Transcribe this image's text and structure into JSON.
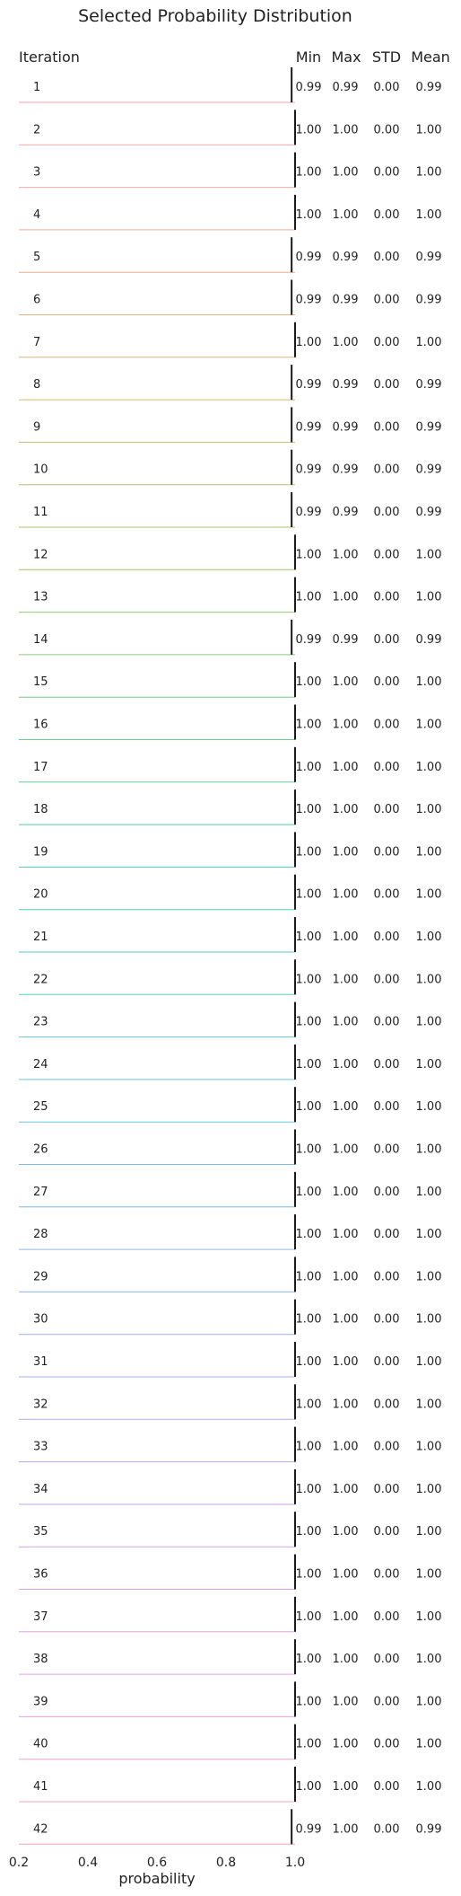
{
  "chart_data": {
    "type": "ridgeline",
    "title": "Selected Probability Distribution",
    "xlabel": "probability",
    "row_header": "Iteration",
    "stat_headers": [
      "Min",
      "Max",
      "STD",
      "Mean"
    ],
    "xlim": [
      0.2,
      1.0
    ],
    "xticks": [
      "0.2",
      "0.4",
      "0.6",
      "0.8",
      "1.0"
    ],
    "grid": false,
    "rows": [
      {
        "iteration": "1",
        "min": "0.99",
        "max": "0.99",
        "std": "0.00",
        "mean": "0.99",
        "color": "#f4a3b4"
      },
      {
        "iteration": "2",
        "min": "1.00",
        "max": "1.00",
        "std": "0.00",
        "mean": "1.00",
        "color": "#f4a6ae"
      },
      {
        "iteration": "3",
        "min": "1.00",
        "max": "1.00",
        "std": "0.00",
        "mean": "1.00",
        "color": "#f3a8a4"
      },
      {
        "iteration": "4",
        "min": "1.00",
        "max": "1.00",
        "std": "0.00",
        "mean": "1.00",
        "color": "#f2aa98"
      },
      {
        "iteration": "5",
        "min": "0.99",
        "max": "0.99",
        "std": "0.00",
        "mean": "0.99",
        "color": "#eead8a"
      },
      {
        "iteration": "6",
        "min": "0.99",
        "max": "0.99",
        "std": "0.00",
        "mean": "0.99",
        "color": "#e6b17f"
      },
      {
        "iteration": "7",
        "min": "1.00",
        "max": "1.00",
        "std": "0.00",
        "mean": "1.00",
        "color": "#ddb577"
      },
      {
        "iteration": "8",
        "min": "0.99",
        "max": "0.99",
        "std": "0.00",
        "mean": "0.99",
        "color": "#d2b971"
      },
      {
        "iteration": "9",
        "min": "0.99",
        "max": "0.99",
        "std": "0.00",
        "mean": "0.99",
        "color": "#c7bd6d"
      },
      {
        "iteration": "10",
        "min": "0.99",
        "max": "0.99",
        "std": "0.00",
        "mean": "0.99",
        "color": "#bbc06b"
      },
      {
        "iteration": "11",
        "min": "0.99",
        "max": "0.99",
        "std": "0.00",
        "mean": "0.99",
        "color": "#aec36b"
      },
      {
        "iteration": "12",
        "min": "1.00",
        "max": "1.00",
        "std": "0.00",
        "mean": "1.00",
        "color": "#a2c66d"
      },
      {
        "iteration": "13",
        "min": "1.00",
        "max": "1.00",
        "std": "0.00",
        "mean": "1.00",
        "color": "#94c872"
      },
      {
        "iteration": "14",
        "min": "0.99",
        "max": "0.99",
        "std": "0.00",
        "mean": "0.99",
        "color": "#86ca7a"
      },
      {
        "iteration": "15",
        "min": "1.00",
        "max": "1.00",
        "std": "0.00",
        "mean": "1.00",
        "color": "#78cc84"
      },
      {
        "iteration": "16",
        "min": "1.00",
        "max": "1.00",
        "std": "0.00",
        "mean": "1.00",
        "color": "#6acd90"
      },
      {
        "iteration": "17",
        "min": "1.00",
        "max": "1.00",
        "std": "0.00",
        "mean": "1.00",
        "color": "#5ecd9c"
      },
      {
        "iteration": "18",
        "min": "1.00",
        "max": "1.00",
        "std": "0.00",
        "mean": "1.00",
        "color": "#55cda8"
      },
      {
        "iteration": "19",
        "min": "1.00",
        "max": "1.00",
        "std": "0.00",
        "mean": "1.00",
        "color": "#52ccb3"
      },
      {
        "iteration": "20",
        "min": "1.00",
        "max": "1.00",
        "std": "0.00",
        "mean": "1.00",
        "color": "#54cbbd"
      },
      {
        "iteration": "21",
        "min": "1.00",
        "max": "1.00",
        "std": "0.00",
        "mean": "1.00",
        "color": "#58cac5"
      },
      {
        "iteration": "22",
        "min": "1.00",
        "max": "1.00",
        "std": "0.00",
        "mean": "1.00",
        "color": "#5dc9cc"
      },
      {
        "iteration": "23",
        "min": "1.00",
        "max": "1.00",
        "std": "0.00",
        "mean": "1.00",
        "color": "#62c8d3"
      },
      {
        "iteration": "24",
        "min": "1.00",
        "max": "1.00",
        "std": "0.00",
        "mean": "1.00",
        "color": "#68c6d9"
      },
      {
        "iteration": "25",
        "min": "1.00",
        "max": "1.00",
        "std": "0.00",
        "mean": "1.00",
        "color": "#6ec4df"
      },
      {
        "iteration": "26",
        "min": "1.00",
        "max": "1.00",
        "std": "0.00",
        "mean": "1.00",
        "color": "#75c1e4"
      },
      {
        "iteration": "27",
        "min": "1.00",
        "max": "1.00",
        "std": "0.00",
        "mean": "1.00",
        "color": "#7dbee8"
      },
      {
        "iteration": "28",
        "min": "1.00",
        "max": "1.00",
        "std": "0.00",
        "mean": "1.00",
        "color": "#86baec"
      },
      {
        "iteration": "29",
        "min": "1.00",
        "max": "1.00",
        "std": "0.00",
        "mean": "1.00",
        "color": "#90b6ef"
      },
      {
        "iteration": "30",
        "min": "1.00",
        "max": "1.00",
        "std": "0.00",
        "mean": "1.00",
        "color": "#9bb2f1"
      },
      {
        "iteration": "31",
        "min": "1.00",
        "max": "1.00",
        "std": "0.00",
        "mean": "1.00",
        "color": "#a6aef2"
      },
      {
        "iteration": "32",
        "min": "1.00",
        "max": "1.00",
        "std": "0.00",
        "mean": "1.00",
        "color": "#b2aaf2"
      },
      {
        "iteration": "33",
        "min": "1.00",
        "max": "1.00",
        "std": "0.00",
        "mean": "1.00",
        "color": "#bda6f1"
      },
      {
        "iteration": "34",
        "min": "1.00",
        "max": "1.00",
        "std": "0.00",
        "mean": "1.00",
        "color": "#c8a3ef"
      },
      {
        "iteration": "35",
        "min": "1.00",
        "max": "1.00",
        "std": "0.00",
        "mean": "1.00",
        "color": "#d2a1ec"
      },
      {
        "iteration": "36",
        "min": "1.00",
        "max": "1.00",
        "std": "0.00",
        "mean": "1.00",
        "color": "#dba0e8"
      },
      {
        "iteration": "37",
        "min": "1.00",
        "max": "1.00",
        "std": "0.00",
        "mean": "1.00",
        "color": "#e3a0e2"
      },
      {
        "iteration": "38",
        "min": "1.00",
        "max": "1.00",
        "std": "0.00",
        "mean": "1.00",
        "color": "#e9a0db"
      },
      {
        "iteration": "39",
        "min": "1.00",
        "max": "1.00",
        "std": "0.00",
        "mean": "1.00",
        "color": "#eea1d3"
      },
      {
        "iteration": "40",
        "min": "1.00",
        "max": "1.00",
        "std": "0.00",
        "mean": "1.00",
        "color": "#f1a2ca"
      },
      {
        "iteration": "41",
        "min": "1.00",
        "max": "1.00",
        "std": "0.00",
        "mean": "1.00",
        "color": "#f3a3c0"
      },
      {
        "iteration": "42",
        "min": "0.99",
        "max": "1.00",
        "std": "0.00",
        "mean": "0.99",
        "color": "#f4a4b6"
      }
    ]
  }
}
